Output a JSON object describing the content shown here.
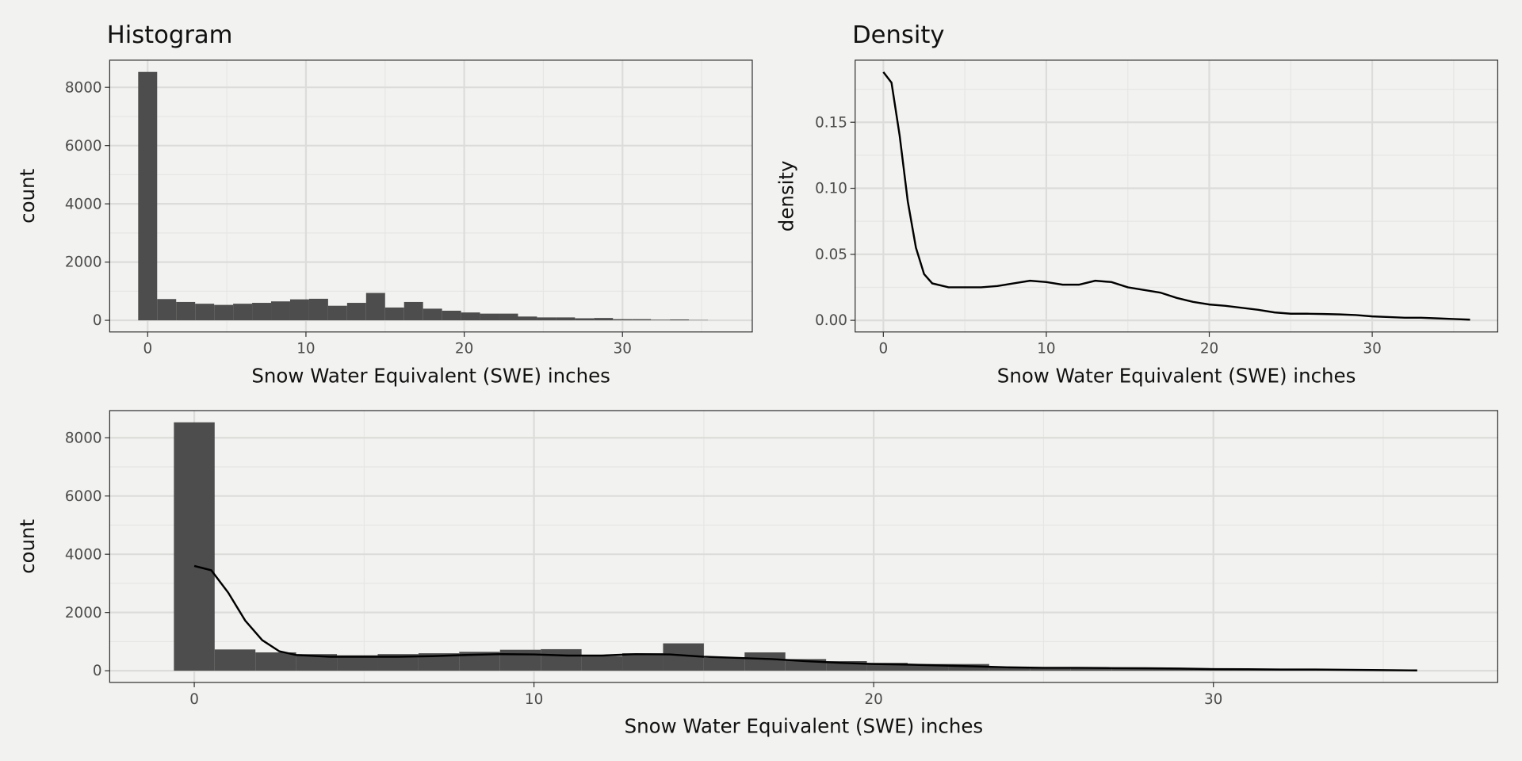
{
  "chart_data": [
    {
      "type": "histogram",
      "title": "Histogram",
      "x_label": "Snow Water Equivalent (SWE) inches",
      "y_label": "count",
      "bins": [
        -0.6,
        0.6,
        1.8,
        3,
        4.2,
        5.4,
        6.6,
        7.8,
        9,
        10.2,
        11.4,
        12.6,
        13.8,
        15,
        16.2,
        17.4,
        18.6,
        19.8,
        21,
        22.2,
        23.4,
        24.6,
        25.8,
        27,
        28.2,
        29.4,
        30.6,
        31.8,
        33,
        34.2,
        35.4
      ],
      "values": [
        8530,
        730,
        630,
        570,
        530,
        570,
        600,
        650,
        720,
        740,
        500,
        600,
        940,
        440,
        630,
        400,
        330,
        270,
        230,
        230,
        130,
        100,
        100,
        70,
        80,
        40,
        40,
        20,
        30,
        10
      ],
      "color": "#4d4d4d",
      "xlim": [
        -2.4,
        38.2
      ],
      "ylim": [
        -400,
        8933
      ],
      "xticks": [
        0,
        10,
        20,
        30
      ],
      "yticks": [
        0,
        2000,
        4000,
        6000,
        8000
      ],
      "grid": true
    },
    {
      "type": "line",
      "title": "Density",
      "x_label": "Snow Water Equivalent (SWE) inches",
      "y_label": "density",
      "x": [
        0,
        0.5,
        1,
        1.5,
        2,
        2.5,
        3,
        4,
        5,
        6,
        7,
        8,
        9,
        10,
        11,
        12,
        13,
        14,
        15,
        16,
        17,
        18,
        19,
        20,
        21,
        22,
        23,
        24,
        25,
        26,
        27,
        28,
        29,
        30,
        31,
        32,
        33,
        34,
        35,
        36
      ],
      "values": [
        0.188,
        0.18,
        0.14,
        0.09,
        0.055,
        0.035,
        0.028,
        0.025,
        0.025,
        0.025,
        0.026,
        0.028,
        0.03,
        0.029,
        0.027,
        0.027,
        0.03,
        0.029,
        0.025,
        0.023,
        0.021,
        0.017,
        0.014,
        0.012,
        0.011,
        0.0095,
        0.008,
        0.006,
        0.005,
        0.005,
        0.0048,
        0.0045,
        0.004,
        0.003,
        0.0025,
        0.002,
        0.002,
        0.0015,
        0.001,
        0.0005
      ],
      "color": "#000000",
      "xlim": [
        -1.73,
        37.7
      ],
      "ylim": [
        -0.0088,
        0.197
      ],
      "xticks": [
        0,
        10,
        20,
        30
      ],
      "yticks": [
        {
          "value": 0,
          "label": "0.00"
        },
        {
          "value": 0.05,
          "label": "0.05"
        },
        {
          "value": 0.1,
          "label": "0.10"
        },
        {
          "value": 0.15,
          "label": "0.15"
        }
      ],
      "grid": true
    },
    {
      "type": "histogram",
      "x_label": "Snow Water Equivalent (SWE) inches",
      "y_label": "count",
      "bins": [
        -0.6,
        0.6,
        1.8,
        3,
        4.2,
        5.4,
        6.6,
        7.8,
        9,
        10.2,
        11.4,
        12.6,
        13.8,
        15,
        16.2,
        17.4,
        18.6,
        19.8,
        21,
        22.2,
        23.4,
        24.6,
        25.8,
        27,
        28.2,
        29.4,
        30.6,
        31.8,
        33,
        34.2,
        35.4
      ],
      "values": [
        8530,
        730,
        630,
        570,
        530,
        570,
        600,
        650,
        720,
        740,
        500,
        600,
        940,
        440,
        630,
        400,
        330,
        270,
        230,
        230,
        130,
        100,
        100,
        70,
        80,
        40,
        40,
        20,
        30,
        10
      ],
      "color": "#4d4d4d",
      "xlim": [
        -2.49,
        38.37
      ],
      "ylim": [
        -400,
        8933
      ],
      "xticks": [
        0,
        10,
        20,
        30
      ],
      "yticks": [
        0,
        2000,
        4000,
        6000,
        8000
      ],
      "grid": true,
      "overlay": {
        "type": "line",
        "color": "#000000",
        "x": [
          0,
          0.5,
          1,
          1.5,
          2,
          2.5,
          3,
          4,
          5,
          6,
          7,
          8,
          9,
          10,
          11,
          12,
          13,
          14,
          15,
          16,
          17,
          18,
          19,
          20,
          21,
          22,
          23,
          24,
          25,
          26,
          27,
          28,
          29,
          30,
          31,
          32,
          33,
          34,
          35,
          36
        ],
        "values": [
          3600,
          3450,
          2680,
          1720,
          1050,
          670,
          540,
          480,
          480,
          480,
          500,
          540,
          570,
          560,
          520,
          520,
          570,
          560,
          480,
          440,
          400,
          330,
          270,
          230,
          210,
          180,
          150,
          115,
          100,
          100,
          90,
          85,
          75,
          55,
          50,
          40,
          40,
          30,
          20,
          10
        ]
      }
    }
  ]
}
